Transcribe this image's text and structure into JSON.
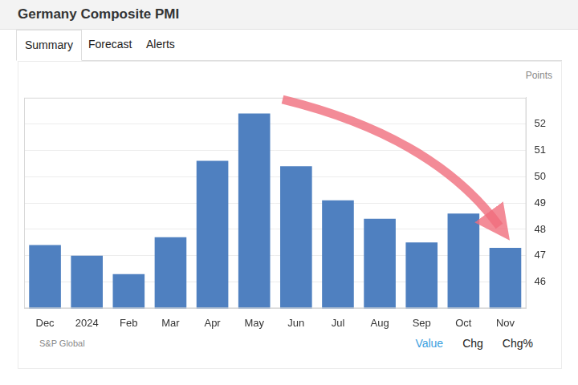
{
  "chart_data": {
    "type": "bar",
    "title": "Germany Composite PMI",
    "y_label": "Points",
    "categories": [
      "Dec",
      "2024",
      "Feb",
      "Mar",
      "Apr",
      "May",
      "Jun",
      "Jul",
      "Aug",
      "Sep",
      "Oct",
      "Nov"
    ],
    "values": [
      47.4,
      47.0,
      46.3,
      47.7,
      50.6,
      52.4,
      50.4,
      49.1,
      48.4,
      47.5,
      48.6,
      47.3
    ],
    "color": "#4f80c0",
    "ylim": [
      45,
      53
    ],
    "yticks": [
      46,
      47,
      48,
      49,
      50,
      51,
      52
    ],
    "grid": true,
    "source": "S&P Global"
  },
  "tabs": [
    "Summary",
    "Forecast",
    "Alerts"
  ],
  "views": [
    "Value",
    "Chg",
    "Chg%"
  ]
}
